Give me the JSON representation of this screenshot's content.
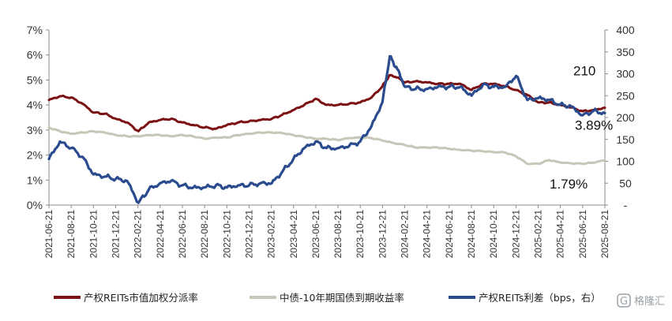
{
  "chart_data": {
    "type": "line",
    "title": "",
    "xlabel": "",
    "ylabel": "",
    "y_left": {
      "min": 0,
      "max": 7,
      "step": 1,
      "tick_labels": [
        "0%",
        "1%",
        "2%",
        "3%",
        "4%",
        "5%",
        "6%",
        "7%"
      ]
    },
    "y_right": {
      "min": 0,
      "max": 400,
      "step": 50,
      "tick_labels": [
        "-",
        "50",
        "100",
        "150",
        "200",
        "250",
        "300",
        "350",
        "400"
      ]
    },
    "x_range": [
      "2021-06-21",
      "2025-08-21"
    ],
    "x_tick_labels": [
      "2021-06-21",
      "2021-08-21",
      "2021-10-21",
      "2021-12-21",
      "2022-02-21",
      "2022-04-21",
      "2022-06-21",
      "2022-08-21",
      "2022-10-21",
      "2022-12-21",
      "2023-02-21",
      "2023-04-21",
      "2023-06-21",
      "2023-08-21",
      "2023-10-21",
      "2023-12-21",
      "2024-02-21",
      "2024-04-21",
      "2024-06-21",
      "2024-08-21",
      "2024-10-21",
      "2024-12-21",
      "2025-02-21",
      "2025-04-21",
      "2025-06-21",
      "2025-08-21"
    ],
    "grid": false,
    "legend_position": "bottom",
    "series": [
      {
        "name": "产权REITs市值加权分派率",
        "axis": "left",
        "color": "#7b1113",
        "x": [
          "2021-06-21",
          "2021-07-21",
          "2021-08-21",
          "2021-09-21",
          "2021-10-21",
          "2021-11-21",
          "2021-12-21",
          "2022-01-21",
          "2022-02-21",
          "2022-03-21",
          "2022-04-21",
          "2022-05-21",
          "2022-06-21",
          "2022-07-21",
          "2022-08-21",
          "2022-09-21",
          "2022-10-21",
          "2022-11-21",
          "2022-12-21",
          "2023-01-21",
          "2023-02-21",
          "2023-03-21",
          "2023-04-21",
          "2023-05-21",
          "2023-06-21",
          "2023-07-21",
          "2023-08-21",
          "2023-09-21",
          "2023-10-21",
          "2023-11-21",
          "2023-12-21",
          "2024-01-10",
          "2024-01-31",
          "2024-02-21",
          "2024-03-21",
          "2024-04-21",
          "2024-05-21",
          "2024-06-21",
          "2024-07-21",
          "2024-08-21",
          "2024-09-21",
          "2024-10-21",
          "2024-11-21",
          "2024-12-21",
          "2025-01-21",
          "2025-02-21",
          "2025-03-21",
          "2025-04-21",
          "2025-05-21",
          "2025-06-21",
          "2025-07-21",
          "2025-08-21"
        ],
        "values": [
          4.2,
          4.35,
          4.3,
          4.05,
          3.7,
          3.65,
          3.45,
          3.3,
          2.95,
          3.3,
          3.4,
          3.45,
          3.3,
          3.2,
          3.1,
          3.05,
          3.2,
          3.3,
          3.35,
          3.4,
          3.45,
          3.6,
          3.8,
          4.0,
          4.25,
          4.0,
          4.0,
          4.05,
          4.1,
          4.3,
          4.75,
          5.2,
          5.1,
          4.9,
          4.95,
          4.9,
          4.85,
          4.85,
          4.85,
          4.6,
          4.85,
          4.85,
          4.75,
          4.6,
          4.4,
          4.1,
          4.1,
          4.0,
          3.9,
          3.75,
          3.8,
          3.89
        ]
      },
      {
        "name": "中债-10年期国债到期收益率",
        "axis": "left",
        "color": "#c8c6b7",
        "x": [
          "2021-06-21",
          "2021-07-21",
          "2021-08-21",
          "2021-09-21",
          "2021-10-21",
          "2021-11-21",
          "2021-12-21",
          "2022-01-21",
          "2022-02-21",
          "2022-03-21",
          "2022-04-21",
          "2022-05-21",
          "2022-06-21",
          "2022-07-21",
          "2022-08-21",
          "2022-09-21",
          "2022-10-21",
          "2022-11-21",
          "2022-12-21",
          "2023-01-21",
          "2023-02-21",
          "2023-03-21",
          "2023-04-21",
          "2023-05-21",
          "2023-06-21",
          "2023-07-21",
          "2023-08-21",
          "2023-09-21",
          "2023-10-21",
          "2023-11-21",
          "2023-12-21",
          "2024-01-21",
          "2024-02-21",
          "2024-03-21",
          "2024-04-21",
          "2024-05-21",
          "2024-06-21",
          "2024-07-21",
          "2024-08-21",
          "2024-09-21",
          "2024-10-21",
          "2024-11-21",
          "2024-12-21",
          "2025-01-21",
          "2025-02-21",
          "2025-03-21",
          "2025-04-21",
          "2025-05-21",
          "2025-06-21",
          "2025-07-21",
          "2025-08-21"
        ],
        "values": [
          3.1,
          2.95,
          2.85,
          2.9,
          2.95,
          2.9,
          2.8,
          2.75,
          2.75,
          2.8,
          2.8,
          2.75,
          2.8,
          2.75,
          2.65,
          2.7,
          2.7,
          2.8,
          2.85,
          2.9,
          2.9,
          2.88,
          2.8,
          2.72,
          2.65,
          2.65,
          2.6,
          2.68,
          2.7,
          2.68,
          2.58,
          2.48,
          2.4,
          2.3,
          2.3,
          2.3,
          2.25,
          2.2,
          2.18,
          2.15,
          2.12,
          2.1,
          1.95,
          1.65,
          1.65,
          1.8,
          1.7,
          1.67,
          1.65,
          1.7,
          1.79
        ]
      },
      {
        "name": "产权REITs利差（bps，右）",
        "axis": "right",
        "color": "#2a4b8d",
        "x": [
          "2021-06-21",
          "2021-07-21",
          "2021-08-21",
          "2021-09-21",
          "2021-10-21",
          "2021-11-21",
          "2021-12-21",
          "2022-01-21",
          "2022-02-21",
          "2022-03-21",
          "2022-04-21",
          "2022-05-21",
          "2022-06-21",
          "2022-07-21",
          "2022-08-21",
          "2022-09-21",
          "2022-10-21",
          "2022-11-21",
          "2022-12-21",
          "2023-01-21",
          "2023-02-21",
          "2023-03-21",
          "2023-04-21",
          "2023-05-21",
          "2023-06-21",
          "2023-07-21",
          "2023-08-21",
          "2023-09-21",
          "2023-10-21",
          "2023-11-21",
          "2023-12-21",
          "2024-01-10",
          "2024-01-31",
          "2024-02-21",
          "2024-03-21",
          "2024-04-21",
          "2024-05-21",
          "2024-06-21",
          "2024-07-21",
          "2024-08-21",
          "2024-09-21",
          "2024-10-21",
          "2024-11-21",
          "2024-12-21",
          "2025-01-21",
          "2025-02-21",
          "2025-03-21",
          "2025-04-21",
          "2025-05-21",
          "2025-06-21",
          "2025-07-21",
          "2025-08-21"
        ],
        "values": [
          105,
          145,
          130,
          110,
          70,
          65,
          60,
          55,
          5,
          35,
          50,
          55,
          45,
          40,
          40,
          45,
          40,
          45,
          45,
          50,
          50,
          75,
          105,
          130,
          145,
          130,
          130,
          135,
          145,
          180,
          235,
          340,
          310,
          270,
          265,
          265,
          270,
          270,
          270,
          250,
          275,
          270,
          270,
          295,
          240,
          245,
          240,
          230,
          225,
          205,
          215,
          210
        ]
      }
    ],
    "annotations": [
      {
        "text": "210",
        "series": 2
      },
      {
        "text": "3.89%",
        "series": 0
      },
      {
        "text": "1.79%",
        "series": 1
      }
    ]
  },
  "watermark": {
    "text": "格隆汇",
    "glyph": "G"
  }
}
